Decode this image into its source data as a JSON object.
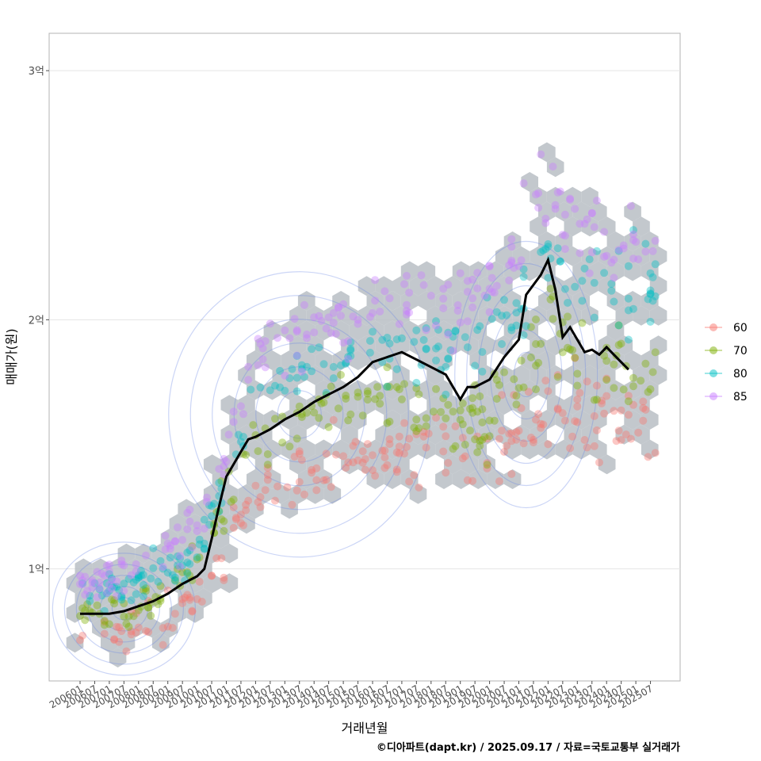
{
  "chart_data": {
    "type": "scatter",
    "title": "",
    "xlabel": "거래년월",
    "ylabel": "매매가(원)",
    "caption": "©디아파트(dapt.kr) / 2025.09.17 / 자료=국토교통부 실거래가",
    "x_start": "200601",
    "x_end": "202509",
    "ylim": [
      0.55,
      3.15
    ],
    "y_ticks": [
      {
        "value": 1,
        "label": "1억"
      },
      {
        "value": 2,
        "label": "2억"
      },
      {
        "value": 3,
        "label": "3억"
      }
    ],
    "x_ticks": [
      "200601",
      "200607",
      "200701",
      "200707",
      "200801",
      "200807",
      "200901",
      "200907",
      "201001",
      "201007",
      "201101",
      "201107",
      "201201",
      "201207",
      "201301",
      "201307",
      "201401",
      "201407",
      "201501",
      "201507",
      "201601",
      "201607",
      "201701",
      "201707",
      "201801",
      "201807",
      "201901",
      "201907",
      "202001",
      "202007",
      "202101",
      "202107",
      "202201",
      "202207",
      "202301",
      "202307",
      "202401",
      "202407",
      "202501",
      "202507"
    ],
    "legend": {
      "position": "right",
      "items": [
        {
          "label": "60",
          "color": "#F8766D"
        },
        {
          "label": "70",
          "color": "#7CAE00"
        },
        {
          "label": "80",
          "color": "#00BFC4"
        },
        {
          "label": "85",
          "color": "#C77CFF"
        }
      ]
    },
    "trend_line": {
      "name": "moving-average",
      "color": "#000000",
      "points": [
        [
          "200601",
          0.82
        ],
        [
          "200607",
          0.82
        ],
        [
          "200701",
          0.82
        ],
        [
          "200707",
          0.83
        ],
        [
          "200801",
          0.85
        ],
        [
          "200807",
          0.87
        ],
        [
          "200901",
          0.9
        ],
        [
          "200907",
          0.94
        ],
        [
          "201001",
          0.97
        ],
        [
          "201004",
          1.0
        ],
        [
          "201007",
          1.12
        ],
        [
          "201010",
          1.25
        ],
        [
          "201101",
          1.37
        ],
        [
          "201104",
          1.42
        ],
        [
          "201107",
          1.47
        ],
        [
          "201110",
          1.52
        ],
        [
          "201201",
          1.53
        ],
        [
          "201207",
          1.56
        ],
        [
          "201301",
          1.6
        ],
        [
          "201307",
          1.63
        ],
        [
          "201401",
          1.67
        ],
        [
          "201407",
          1.7
        ],
        [
          "201501",
          1.73
        ],
        [
          "201507",
          1.77
        ],
        [
          "201601",
          1.83
        ],
        [
          "201607",
          1.85
        ],
        [
          "201701",
          1.87
        ],
        [
          "201707",
          1.84
        ],
        [
          "201801",
          1.81
        ],
        [
          "201807",
          1.78
        ],
        [
          "201901",
          1.68
        ],
        [
          "201904",
          1.73
        ],
        [
          "201907",
          1.73
        ],
        [
          "202001",
          1.76
        ],
        [
          "202007",
          1.85
        ],
        [
          "202101",
          1.92
        ],
        [
          "202104",
          2.1
        ],
        [
          "202107",
          2.14
        ],
        [
          "202110",
          2.18
        ],
        [
          "202201",
          2.24
        ],
        [
          "202204",
          2.12
        ],
        [
          "202207",
          1.93
        ],
        [
          "202210",
          1.97
        ],
        [
          "202301",
          1.92
        ],
        [
          "202304",
          1.87
        ],
        [
          "202307",
          1.88
        ],
        [
          "202310",
          1.86
        ],
        [
          "202401",
          1.89
        ],
        [
          "202404",
          1.86
        ],
        [
          "202407",
          1.83
        ],
        [
          "202410",
          1.8
        ]
      ]
    },
    "scatter_series_centers": [
      {
        "name": "60",
        "points": [
          [
            "200607",
            0.72
          ],
          [
            "200801",
            0.75
          ],
          [
            "201001",
            0.85
          ],
          [
            "201201",
            1.3
          ],
          [
            "201401",
            1.4
          ],
          [
            "201601",
            1.45
          ],
          [
            "201801",
            1.5
          ],
          [
            "202001",
            1.45
          ],
          [
            "202201",
            1.65
          ],
          [
            "202401",
            1.6
          ]
        ]
      },
      {
        "name": "70",
        "points": [
          [
            "200607",
            0.82
          ],
          [
            "200801",
            0.85
          ],
          [
            "201001",
            1.0
          ],
          [
            "201201",
            1.5
          ],
          [
            "201401",
            1.65
          ],
          [
            "201601",
            1.7
          ],
          [
            "201801",
            1.65
          ],
          [
            "202001",
            1.6
          ],
          [
            "202201",
            1.95
          ],
          [
            "202401",
            1.8
          ]
        ]
      },
      {
        "name": "80",
        "points": [
          [
            "200607",
            0.9
          ],
          [
            "200801",
            0.95
          ],
          [
            "201001",
            1.05
          ],
          [
            "201201",
            1.7
          ],
          [
            "201401",
            1.8
          ],
          [
            "201601",
            1.85
          ],
          [
            "201801",
            1.85
          ],
          [
            "202001",
            1.9
          ],
          [
            "202201",
            2.25
          ],
          [
            "202401",
            2.1
          ]
        ]
      },
      {
        "name": "85",
        "points": [
          [
            "200607",
            0.95
          ],
          [
            "200801",
            1.0
          ],
          [
            "201001",
            1.15
          ],
          [
            "201201",
            1.85
          ],
          [
            "201401",
            1.95
          ],
          [
            "201601",
            2.05
          ],
          [
            "201801",
            2.05
          ],
          [
            "202001",
            2.1
          ],
          [
            "202201",
            2.5
          ],
          [
            "202401",
            2.3
          ]
        ]
      }
    ]
  }
}
